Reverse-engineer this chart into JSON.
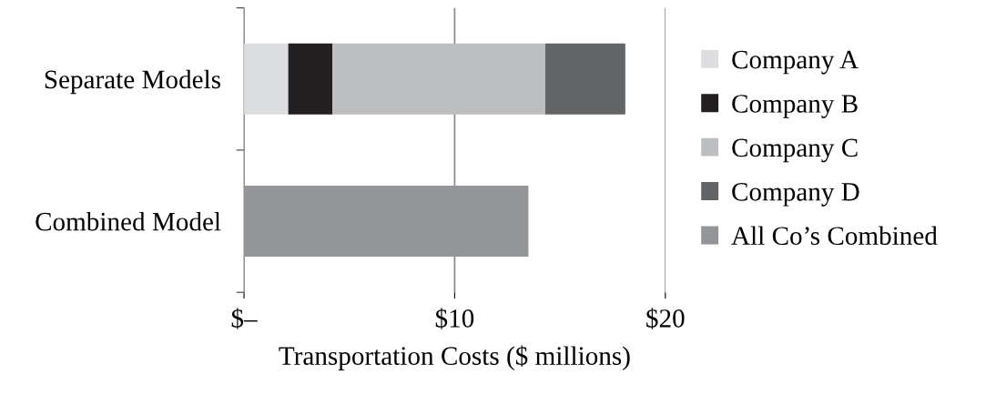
{
  "chart_data": {
    "type": "bar",
    "orientation": "horizontal",
    "stacked": true,
    "xlabel": "Transportation Costs ($ millions)",
    "categories": [
      "Separate Models",
      "Combined Model"
    ],
    "series": [
      {
        "name": "Company A",
        "color": "#dcdddf",
        "values": [
          2.1,
          null
        ]
      },
      {
        "name": "Company B",
        "color": "#231f20",
        "values": [
          2.1,
          null
        ]
      },
      {
        "name": "Company C",
        "color": "#bcbec0",
        "values": [
          10.1,
          null
        ]
      },
      {
        "name": "Company D",
        "color": "#636466",
        "values": [
          3.8,
          null
        ]
      },
      {
        "name": "All Co’s Combined",
        "color": "#939598",
        "values": [
          null,
          13.5
        ]
      }
    ],
    "xlim": [
      0,
      20
    ],
    "xticks": [
      {
        "value": 0,
        "label": "$–"
      },
      {
        "value": 10,
        "label": "$10"
      },
      {
        "value": 20,
        "label": "$20"
      }
    ],
    "grid": "x",
    "legend": "right"
  }
}
